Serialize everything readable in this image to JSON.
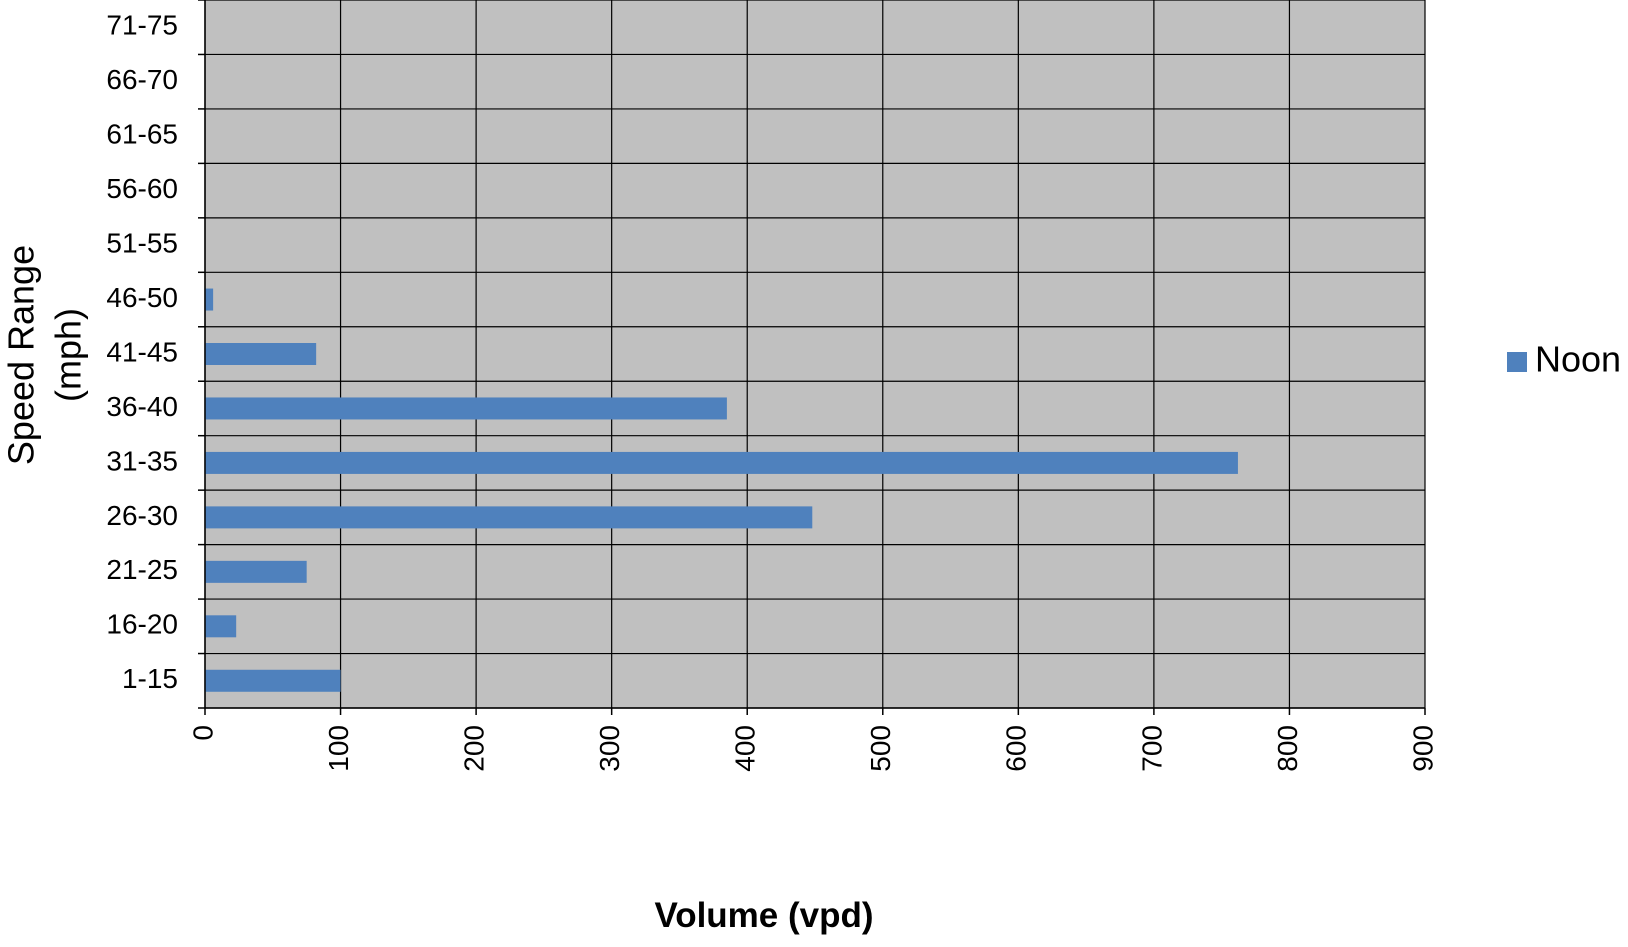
{
  "chart_data": {
    "type": "bar",
    "orientation": "horizontal",
    "categories": [
      "1-15",
      "16-20",
      "21-25",
      "26-30",
      "31-35",
      "36-40",
      "41-45",
      "46-50",
      "51-55",
      "56-60",
      "61-65",
      "66-70",
      "71-75"
    ],
    "series": [
      {
        "name": "Noon",
        "values": [
          100,
          23,
          75,
          448,
          762,
          385,
          82,
          6,
          0,
          0,
          0,
          0,
          0
        ]
      }
    ],
    "xlabel": "Volume (vpd)",
    "ylabel": "Speed Range (mph)",
    "ylabel_lines": [
      "Speed Range",
      "(mph)"
    ],
    "xlim": [
      0,
      900
    ],
    "xticks": [
      "0",
      "100",
      "200",
      "300",
      "400",
      "500",
      "600",
      "700",
      "800",
      "900"
    ],
    "grid": true,
    "legend_position": "right",
    "colors": {
      "bar": "#4f81bd",
      "plot_background": "#c0c0c0",
      "grid": "#000000"
    }
  }
}
